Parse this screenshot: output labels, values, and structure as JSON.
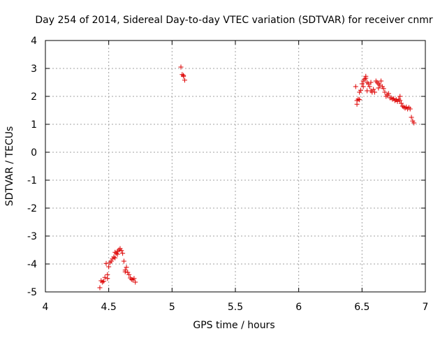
{
  "chart_data": {
    "type": "scatter",
    "title": "Day 254 of 2014, Sidereal Day-to-day VTEC variation (SDTVAR) for receiver cnmr",
    "xlabel": "GPS time / hours",
    "ylabel": "SDTVAR / TECUs",
    "xlim": [
      4,
      7
    ],
    "ylim": [
      -5,
      4
    ],
    "xticks": [
      4,
      4.5,
      5,
      5.5,
      6,
      6.5,
      7
    ],
    "xtick_labels": [
      "4",
      "4.5",
      "5",
      "5.5",
      "6",
      "6.5",
      "7"
    ],
    "yticks": [
      -5,
      -4,
      -3,
      -2,
      -1,
      0,
      1,
      2,
      3,
      4
    ],
    "ytick_labels": [
      "-5",
      "-4",
      "-3",
      "-2",
      "-1",
      "0",
      "1",
      "2",
      "3",
      "4"
    ],
    "grid": true,
    "marker": "plus",
    "series": [
      {
        "name": "SDTVAR",
        "color": "#dd0000",
        "points": [
          [
            4.43,
            -4.85
          ],
          [
            4.44,
            -4.6
          ],
          [
            4.45,
            -4.65
          ],
          [
            4.46,
            -4.62
          ],
          [
            4.47,
            -4.48
          ],
          [
            4.48,
            -3.98
          ],
          [
            4.49,
            -4.38
          ],
          [
            4.49,
            -4.52
          ],
          [
            4.5,
            -4.1
          ],
          [
            4.51,
            -3.95
          ],
          [
            4.52,
            -3.9
          ],
          [
            4.53,
            -3.82
          ],
          [
            4.54,
            -3.75
          ],
          [
            4.55,
            -3.78
          ],
          [
            4.55,
            -3.58
          ],
          [
            4.56,
            -3.62
          ],
          [
            4.57,
            -3.65
          ],
          [
            4.57,
            -3.55
          ],
          [
            4.58,
            -3.5
          ],
          [
            4.59,
            -3.45
          ],
          [
            4.6,
            -3.52
          ],
          [
            4.61,
            -3.62
          ],
          [
            4.62,
            -3.9
          ],
          [
            4.63,
            -4.22
          ],
          [
            4.63,
            -4.28
          ],
          [
            4.64,
            -4.12
          ],
          [
            4.65,
            -4.3
          ],
          [
            4.66,
            -4.38
          ],
          [
            4.67,
            -4.5
          ],
          [
            4.68,
            -4.55
          ],
          [
            4.69,
            -4.57
          ],
          [
            4.7,
            -4.52
          ],
          [
            4.71,
            -4.65
          ],
          [
            5.07,
            3.05
          ],
          [
            5.08,
            2.78
          ],
          [
            5.09,
            2.72
          ],
          [
            5.09,
            2.75
          ],
          [
            5.1,
            2.58
          ],
          [
            6.45,
            2.35
          ],
          [
            6.46,
            1.72
          ],
          [
            6.46,
            1.85
          ],
          [
            6.47,
            1.9
          ],
          [
            6.48,
            1.88
          ],
          [
            6.48,
            2.15
          ],
          [
            6.49,
            2.22
          ],
          [
            6.5,
            2.45
          ],
          [
            6.51,
            2.55
          ],
          [
            6.51,
            2.35
          ],
          [
            6.52,
            2.62
          ],
          [
            6.53,
            2.72
          ],
          [
            6.53,
            2.65
          ],
          [
            6.54,
            2.5
          ],
          [
            6.54,
            2.2
          ],
          [
            6.55,
            2.45
          ],
          [
            6.56,
            2.35
          ],
          [
            6.57,
            2.5
          ],
          [
            6.57,
            2.2
          ],
          [
            6.58,
            2.15
          ],
          [
            6.59,
            2.25
          ],
          [
            6.6,
            2.15
          ],
          [
            6.61,
            2.55
          ],
          [
            6.62,
            2.5
          ],
          [
            6.63,
            2.3
          ],
          [
            6.63,
            2.45
          ],
          [
            6.64,
            2.4
          ],
          [
            6.65,
            2.55
          ],
          [
            6.66,
            2.35
          ],
          [
            6.67,
            2.28
          ],
          [
            6.68,
            2.15
          ],
          [
            6.69,
            2.0
          ],
          [
            6.7,
            2.05
          ],
          [
            6.71,
            2.1
          ],
          [
            6.72,
            1.95
          ],
          [
            6.73,
            1.95
          ],
          [
            6.74,
            1.9
          ],
          [
            6.75,
            1.92
          ],
          [
            6.76,
            1.85
          ],
          [
            6.77,
            1.88
          ],
          [
            6.78,
            1.82
          ],
          [
            6.79,
            1.9
          ],
          [
            6.8,
            2.0
          ],
          [
            6.8,
            1.85
          ],
          [
            6.81,
            1.75
          ],
          [
            6.82,
            1.65
          ],
          [
            6.83,
            1.62
          ],
          [
            6.84,
            1.58
          ],
          [
            6.85,
            1.62
          ],
          [
            6.86,
            1.55
          ],
          [
            6.87,
            1.6
          ],
          [
            6.88,
            1.55
          ],
          [
            6.89,
            1.25
          ],
          [
            6.9,
            1.12
          ],
          [
            6.91,
            1.05
          ]
        ]
      }
    ]
  }
}
